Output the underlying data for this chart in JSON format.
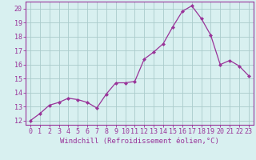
{
  "x": [
    0,
    1,
    2,
    3,
    4,
    5,
    6,
    7,
    8,
    9,
    10,
    11,
    12,
    13,
    14,
    15,
    16,
    17,
    18,
    19,
    20,
    21,
    22,
    23
  ],
  "y": [
    12.0,
    12.5,
    13.1,
    13.3,
    13.6,
    13.5,
    13.3,
    12.9,
    13.9,
    14.7,
    14.7,
    14.8,
    16.4,
    16.9,
    17.5,
    18.7,
    19.8,
    20.2,
    19.3,
    18.1,
    16.0,
    16.3,
    15.9,
    15.2
  ],
  "line_color": "#993399",
  "marker": "D",
  "marker_size": 2.0,
  "bg_color": "#d8f0f0",
  "grid_color": "#aacccc",
  "xlabel": "Windchill (Refroidissement éolien,°C)",
  "ylabel_ticks": [
    12,
    13,
    14,
    15,
    16,
    17,
    18,
    19,
    20
  ],
  "xlim": [
    -0.5,
    23.5
  ],
  "ylim": [
    11.7,
    20.5
  ],
  "xlabel_fontsize": 6.5,
  "tick_fontsize": 6.0,
  "linewidth": 0.9
}
